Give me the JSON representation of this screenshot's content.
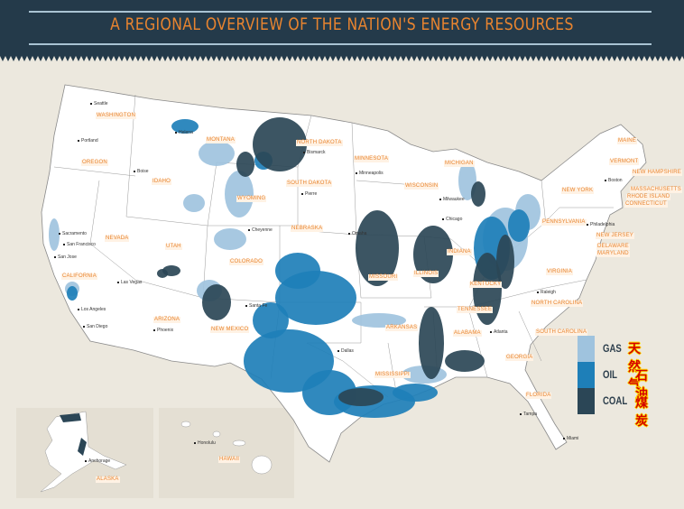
{
  "header": {
    "title": "A REGIONAL OVERVIEW OF THE NATION'S ENERGY RESOURCES"
  },
  "colors": {
    "header_bg": "#243a4a",
    "title": "#e8842f",
    "land": "#ffffff",
    "water": "#ece8de",
    "gas": "#9fc3de",
    "oil": "#1e7fb8",
    "coal": "#2b4656"
  },
  "legend": [
    {
      "label": "GAS",
      "translation": "天然气",
      "color": "#9fc3de"
    },
    {
      "label": "OIL",
      "translation": "石油",
      "color": "#1e7fb8"
    },
    {
      "label": "COAL",
      "translation": "煤炭",
      "color": "#2b4656"
    }
  ],
  "states": [
    "WASHINGTON",
    "OREGON",
    "CALIFORNIA",
    "NEVADA",
    "IDAHO",
    "MONTANA",
    "WYOMING",
    "UTAH",
    "ARIZONA",
    "COLORADO",
    "NEW MEXICO",
    "NORTH DAKOTA",
    "SOUTH DAKOTA",
    "NEBRASKA",
    "MINNESOTA",
    "WISCONSIN",
    "MICHIGAN",
    "ILLINOIS",
    "INDIANA",
    "MISSOURI",
    "ARKANSAS",
    "TENNESSEE",
    "KENTUCKY",
    "ALABAMA",
    "MISSISSIPPI",
    "GEORGIA",
    "FLORIDA",
    "SOUTH CAROLINA",
    "NORTH CAROLINA",
    "VIRGINIA",
    "PENNSYLVANIA",
    "NEW YORK",
    "VERMONT",
    "MAINE",
    "NEW HAMPSHIRE",
    "MASSACHUSETTS",
    "RHODE ISLAND",
    "CONNECTICUT",
    "NEW JERSEY",
    "DELAWARE",
    "MARYLAND",
    "ALASKA",
    "HAWAII"
  ],
  "cities": [
    "Seattle",
    "Portland",
    "Boise",
    "Helena",
    "Bismarck",
    "Pierre",
    "Minneapolis",
    "Milwaukee",
    "Chicago",
    "Omaha",
    "Cheyenne",
    "Sacramento",
    "San Francisco",
    "San Jose",
    "Los Angeles",
    "San Diego",
    "Las Vegas",
    "Phoenix",
    "Santa Fe",
    "Dallas",
    "Atlanta",
    "Raleigh",
    "Philadelphia",
    "Boston",
    "Tampa",
    "Miami",
    "Honolulu",
    "Anchorage"
  ]
}
